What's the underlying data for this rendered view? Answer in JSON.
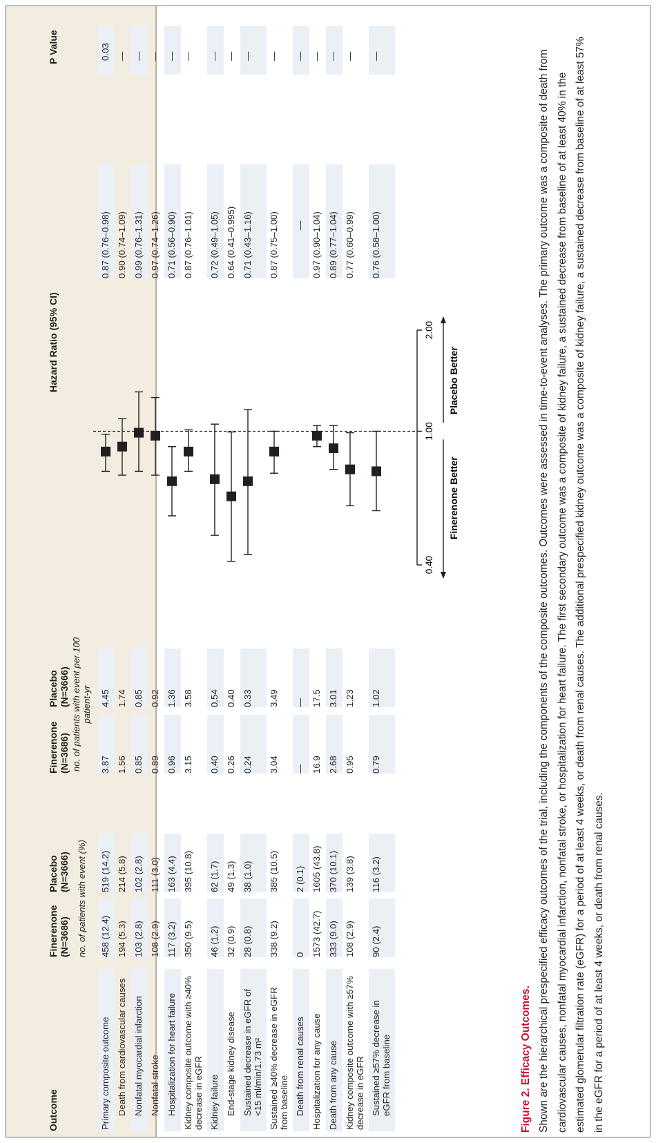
{
  "headers": {
    "outcome": "Outcome",
    "fin_n": "Finerenone (N=3686)",
    "pla_n": "Placebo (N=3666)",
    "fin_rate": "Finerenone (N=3686)",
    "pla_rate": "Placebo (N=3666)",
    "sub_n": "no. of patients with event (%)",
    "sub_rate": "no. of patients with event per 100 patient-yr",
    "hr": "Hazard Ratio (95% CI)",
    "p": "P Value"
  },
  "rows": [
    {
      "label": "Primary composite outcome",
      "fn": "458 (12.4)",
      "pn": "519 (14.2)",
      "fr": "3.87",
      "pr": "4.45",
      "ci": "0.87 (0.76–0.98)",
      "p": "0.03"
    },
    {
      "label": "Death from cardiovascular causes",
      "fn": "194 (5.3)",
      "pn": "214 (5.8)",
      "fr": "1.56",
      "pr": "1.74",
      "ci": "0.90 (0.74–1.09)",
      "p": "—"
    },
    {
      "label": "Nonfatal myocardial infarction",
      "fn": "103 (2.8)",
      "pn": "102 (2.8)",
      "fr": "0.85",
      "pr": "0.85",
      "ci": "0.99 (0.76–1.31)",
      "p": "—"
    },
    {
      "label": "Nonfatal stroke",
      "fn": "108 (2.9)",
      "pn": "111 (3.0)",
      "fr": "0.89",
      "pr": "0.92",
      "ci": "0.97 (0.74–1.26)",
      "p": "—"
    },
    {
      "label": "Hospitalization for heart failure",
      "fn": "117 (3.2)",
      "pn": "163 (4.4)",
      "fr": "0.96",
      "pr": "1.36",
      "ci": "0.71 (0.56–0.90)",
      "p": "—"
    },
    {
      "label": "Kidney composite outcome with ≥40% decrease in eGFR",
      "fn": "350 (9.5)",
      "pn": "395 (10.8)",
      "fr": "3.15",
      "pr": "3.58",
      "ci": "0.87 (0.76–1.01)",
      "p": "—"
    },
    {
      "label": "Kidney failure",
      "fn": "46 (1.2)",
      "pn": "62 (1.7)",
      "fr": "0.40",
      "pr": "0.54",
      "ci": "0.72 (0.49–1.05)",
      "p": "—"
    },
    {
      "label": "End-stage kidney disease",
      "fn": "32 (0.9)",
      "pn": "49 (1.3)",
      "fr": "0.26",
      "pr": "0.40",
      "ci": "0.64 (0.41–0.995)",
      "p": "—"
    },
    {
      "label": "Sustained decrease in eGFR of <15 ml/min/1.73 m²",
      "fn": "28 (0.8)",
      "pn": "38 (1.0)",
      "fr": "0.24",
      "pr": "0.33",
      "ci": "0.71 (0.43–1.16)",
      "p": "—"
    },
    {
      "label": "Sustained ≥40% decrease in eGFR from baseline",
      "fn": "338 (9.2)",
      "pn": "385 (10.5)",
      "fr": "3.04",
      "pr": "3.49",
      "ci": "0.87 (0.75–1.00)",
      "p": "—"
    },
    {
      "label": "Death from renal causes",
      "fn": "0",
      "pn": "2 (0.1)",
      "fr": "—",
      "pr": "—",
      "ci": "—",
      "p": "—"
    },
    {
      "label": "Hospitalization for any cause",
      "fn": "1573 (42.7)",
      "pn": "1605 (43.8)",
      "fr": "16.9",
      "pr": "17.5",
      "ci": "0.97 (0.90–1.04)",
      "p": "—"
    },
    {
      "label": "Death from any cause",
      "fn": "333 (9.0)",
      "pn": "370 (10.1)",
      "fr": "2.68",
      "pr": "3.01",
      "ci": "0.89 (0.77–1.04)",
      "p": "—"
    },
    {
      "label": "Kidney composite outcome with ≥57% decrease in eGFR",
      "fn": "108 (2.9)",
      "pn": "139 (3.8)",
      "fr": "0.95",
      "pr": "1.23",
      "ci": "0.77 (0.60–0.99)",
      "p": "—"
    },
    {
      "label": "Sustained ≥57% decrease in eGFR from baseline",
      "fn": "90 (2.4)",
      "pn": "116 (3.2)",
      "fr": "0.79",
      "pr": "1.02",
      "ci": "0.76 (0.58–1.00)",
      "p": "—"
    }
  ],
  "chart_data": {
    "type": "scatter",
    "xscale": "log",
    "xlim": [
      0.4,
      2.0
    ],
    "ticks": [
      "0.40",
      "1.00",
      "2.00"
    ],
    "reference_line": 1.0,
    "left_label": "Finerenone Better",
    "right_label": "Placebo Better",
    "points": [
      {
        "hr": 0.87,
        "lo": 0.76,
        "hi": 0.98
      },
      {
        "hr": 0.9,
        "lo": 0.74,
        "hi": 1.09
      },
      {
        "hr": 0.99,
        "lo": 0.76,
        "hi": 1.31
      },
      {
        "hr": 0.97,
        "lo": 0.74,
        "hi": 1.26
      },
      {
        "hr": 0.71,
        "lo": 0.56,
        "hi": 0.9
      },
      {
        "hr": 0.87,
        "lo": 0.76,
        "hi": 1.01
      },
      {
        "hr": 0.72,
        "lo": 0.49,
        "hi": 1.05
      },
      {
        "hr": 0.64,
        "lo": 0.41,
        "hi": 0.995
      },
      {
        "hr": 0.71,
        "lo": 0.43,
        "hi": 1.16
      },
      {
        "hr": 0.87,
        "lo": 0.75,
        "hi": 1.0
      },
      null,
      {
        "hr": 0.97,
        "lo": 0.9,
        "hi": 1.04
      },
      {
        "hr": 0.89,
        "lo": 0.77,
        "hi": 1.04
      },
      {
        "hr": 0.77,
        "lo": 0.6,
        "hi": 0.99
      },
      {
        "hr": 0.76,
        "lo": 0.58,
        "hi": 1.0
      }
    ]
  },
  "caption": {
    "title": "Figure 2. Efficacy Outcomes.",
    "body": "Shown are the hierarchical prespecified efficacy outcomes of the trial, including the components of the composite outcomes. Outcomes were assessed in time-to-event analyses. The primary outcome was a composite of death from cardiovascular causes, nonfatal myocardial infarction, nonfatal stroke, or hospitalization for heart failure. The first secondary outcome was a composite of kidney failure, a sustained decrease from baseline of at least 40% in the estimated glomerular filtration rate (eGFR) for a period of at least 4 weeks, or death from renal causes. The additional prespecified kidney outcome was a composite of kidney failure, a sustained decrease from baseline of at least 57% in the eGFR for a period of at least 4 weeks, or death from renal causes."
  },
  "colors": {
    "caption_title": "#c8102e",
    "stripe": "#eaf0f6",
    "caption_bg": "#f3ece0"
  }
}
